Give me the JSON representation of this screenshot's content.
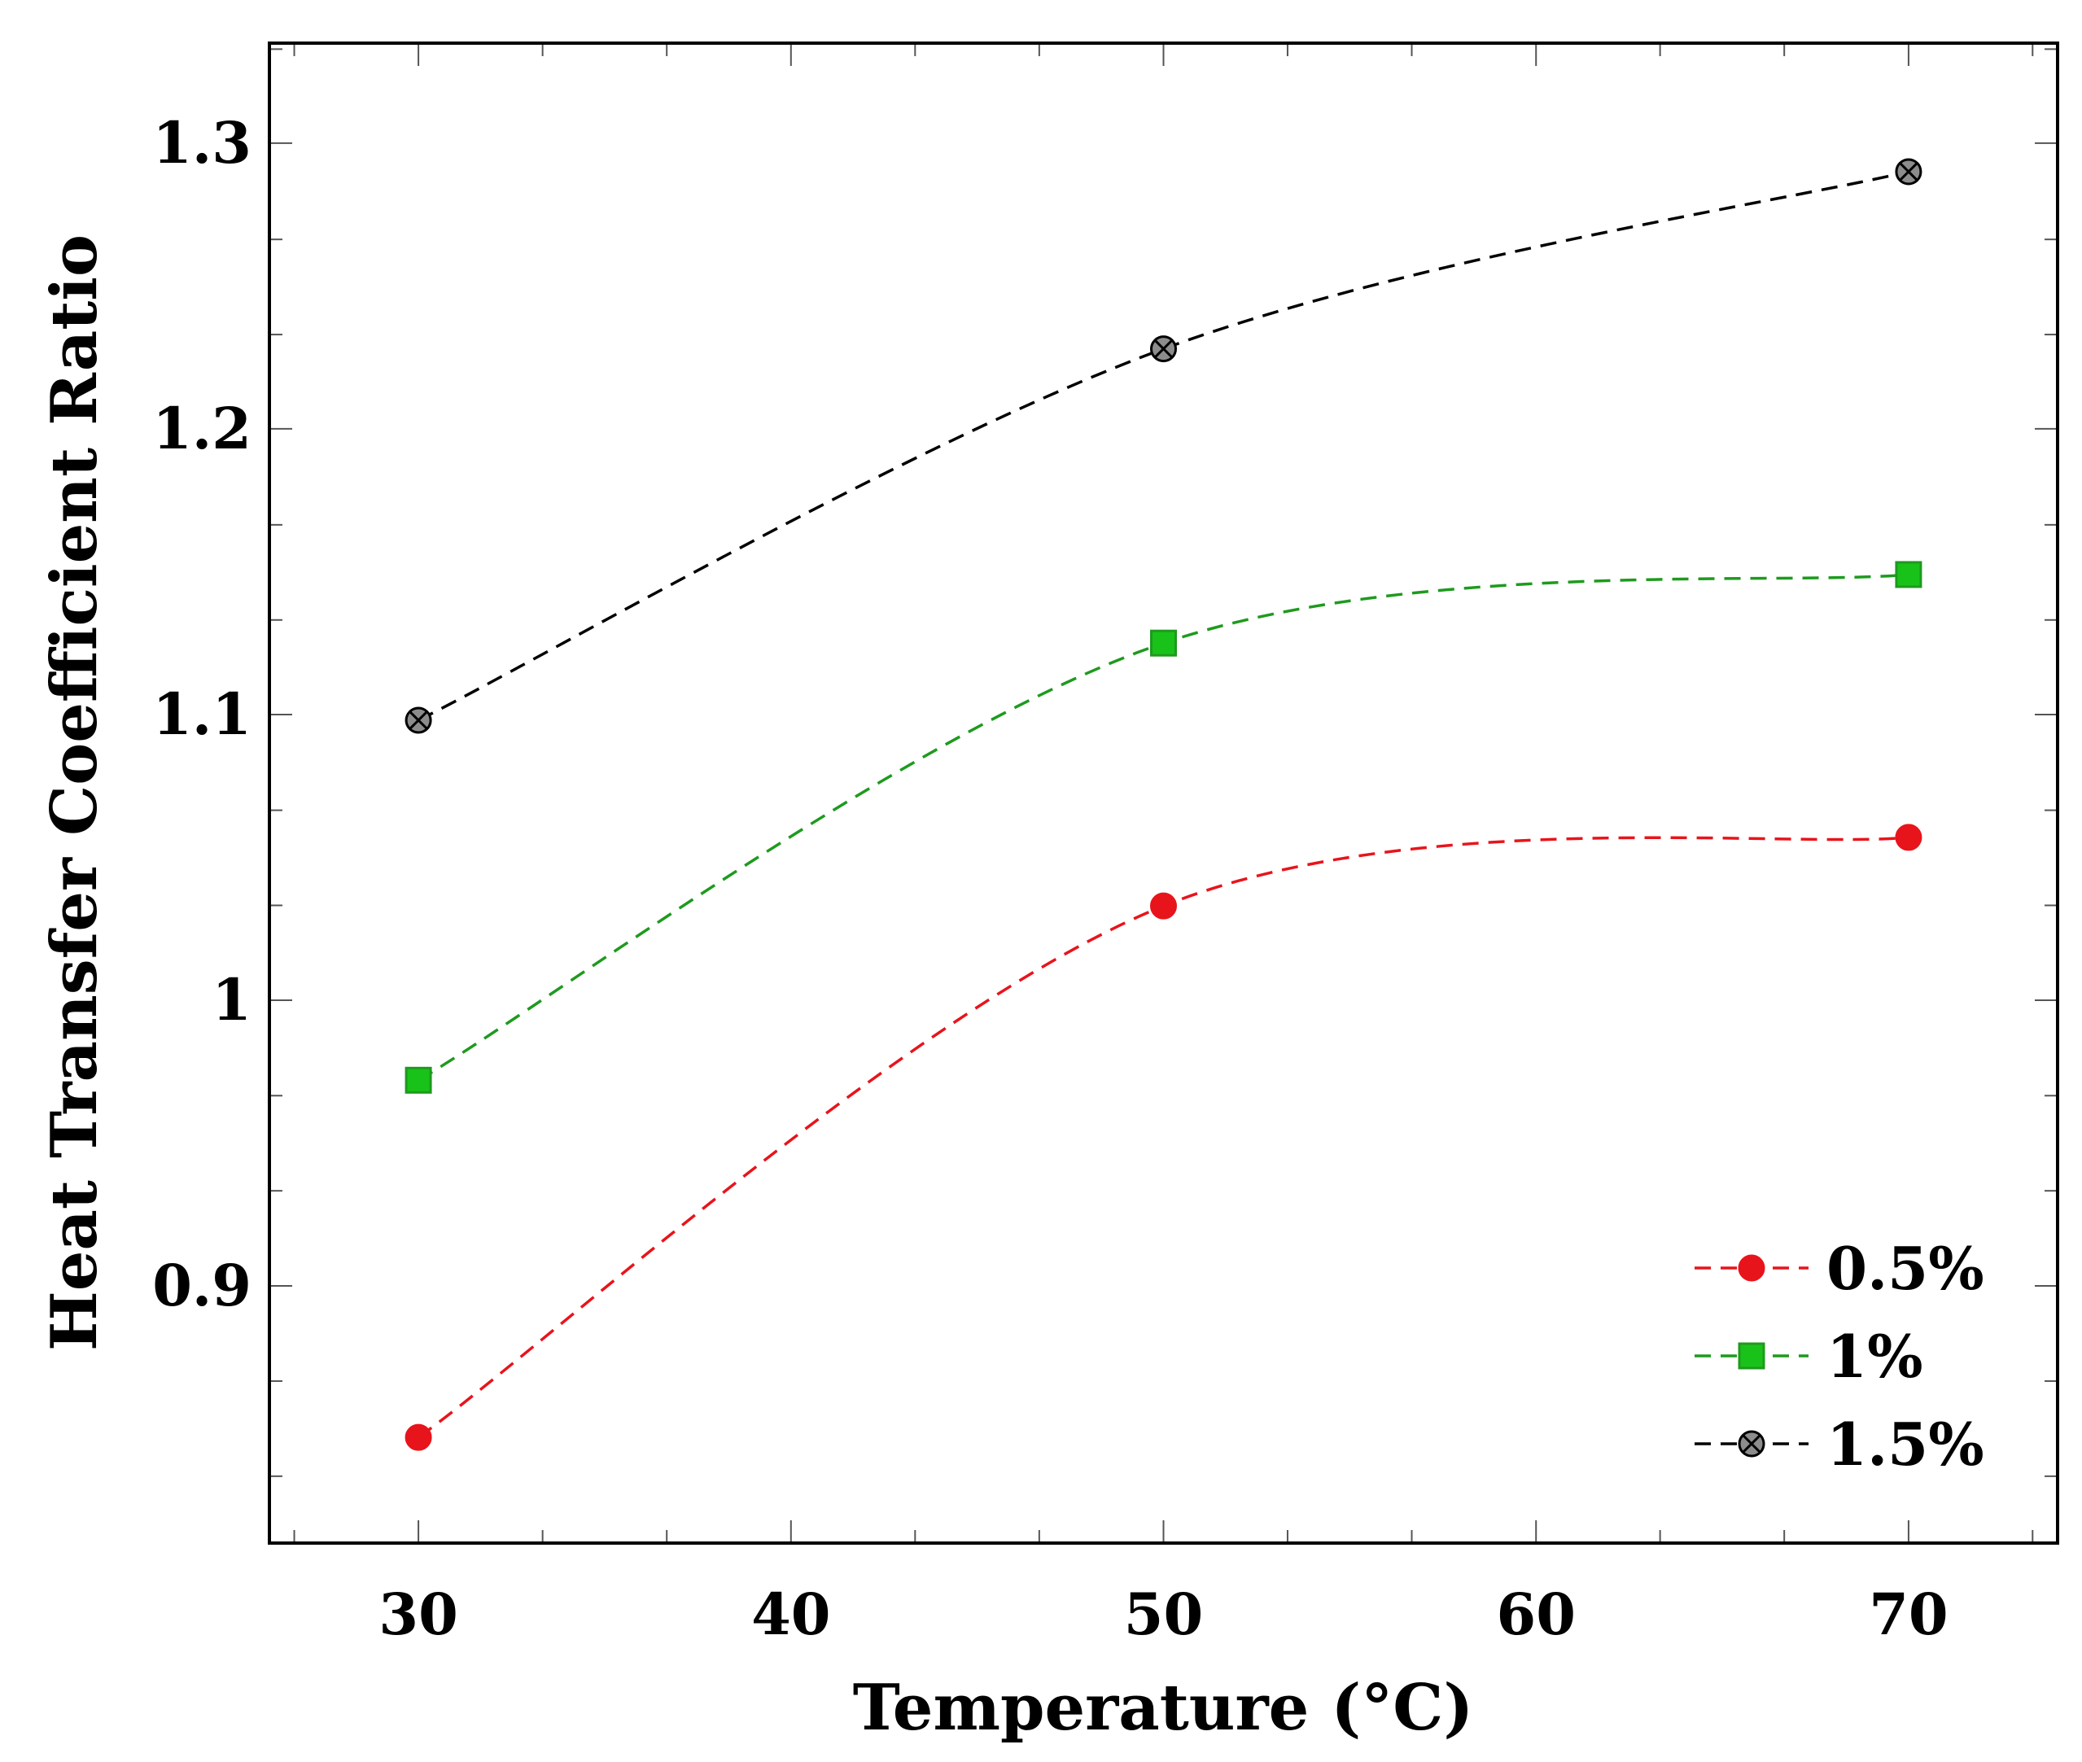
{
  "chart_data": {
    "type": "line",
    "title": "",
    "xlabel": "Temperature (°C)",
    "ylabel": "Heat Transfer Coefficient Ratio",
    "xlim": [
      26,
      74
    ],
    "ylim": [
      0.81,
      1.335
    ],
    "x_ticks": [
      30,
      40,
      50,
      60,
      70
    ],
    "x_tick_labels": [
      "30",
      "40",
      "50",
      "60",
      "70"
    ],
    "y_ticks": [
      0.9,
      1.0,
      1.1,
      1.2,
      1.3
    ],
    "y_tick_labels": [
      "0.9",
      "1",
      "1.1",
      "1.2",
      "1.3"
    ],
    "x_minor_step": 3.333,
    "y_minor_step": 0.0333,
    "grid": false,
    "legend_position": "bottom-right",
    "line_style": "dashed-smooth",
    "x": [
      30,
      50,
      70
    ],
    "series": [
      {
        "name": "0.5%",
        "values": [
          0.847,
          1.033,
          1.057
        ],
        "color": "#e8141b",
        "marker": "circle",
        "fill": "#e8141b"
      },
      {
        "name": "1%",
        "values": [
          0.972,
          1.125,
          1.149
        ],
        "color": "#1e9a1e",
        "marker": "square",
        "fill": "#19c219"
      },
      {
        "name": "1.5%",
        "values": [
          1.098,
          1.228,
          1.29
        ],
        "color": "#000000",
        "marker": "otimes",
        "fill": "#8c8c8c"
      }
    ]
  }
}
